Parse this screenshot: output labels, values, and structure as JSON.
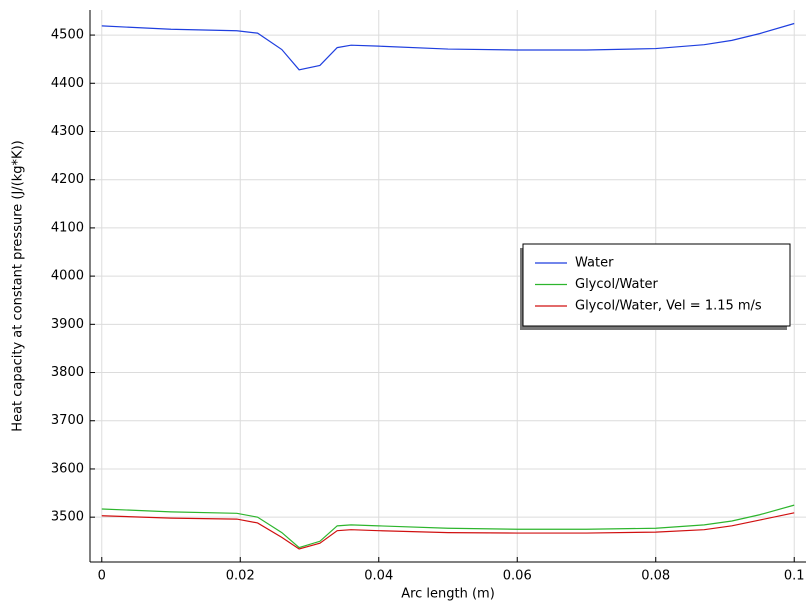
{
  "chart_data": {
    "type": "line",
    "xlabel": "Arc length (m)",
    "ylabel": "Heat capacity at constant pressure (J/(kg*K))",
    "x": [
      0,
      0.01,
      0.0195,
      0.0225,
      0.026,
      0.0285,
      0.0315,
      0.034,
      0.036,
      0.04,
      0.05,
      0.06,
      0.07,
      0.08,
      0.087,
      0.091,
      0.095,
      0.1
    ],
    "series": [
      {
        "name": "Water",
        "color": "#1f3fdf",
        "values": [
          4519,
          4512,
          4509,
          4504,
          4470,
          4428,
          4437,
          4474,
          4479,
          4477,
          4471,
          4469,
          4469,
          4472,
          4480,
          4489,
          4503,
          4524
        ]
      },
      {
        "name": "Glycol/Water",
        "color": "#2db52d",
        "values": [
          3517,
          3511,
          3508,
          3500,
          3468,
          3437,
          3450,
          3482,
          3484,
          3482,
          3477,
          3475,
          3475,
          3477,
          3484,
          3492,
          3505,
          3525
        ]
      },
      {
        "name": "Glycol/Water, Vel = 1.15 m/s",
        "color": "#d01010",
        "values": [
          3503,
          3498,
          3496,
          3488,
          3458,
          3434,
          3446,
          3472,
          3474,
          3472,
          3468,
          3467,
          3467,
          3469,
          3474,
          3482,
          3494,
          3509
        ]
      }
    ],
    "xlim": [
      -0.0017,
      0.1017
    ],
    "ylim": [
      3407,
      4552
    ],
    "xticks": [
      0,
      0.02,
      0.04,
      0.06,
      0.08,
      0.1
    ],
    "yticks": [
      3500,
      3600,
      3700,
      3800,
      3900,
      4000,
      4100,
      4200,
      4300,
      4400,
      4500
    ],
    "grid": true,
    "legend": "center right"
  }
}
